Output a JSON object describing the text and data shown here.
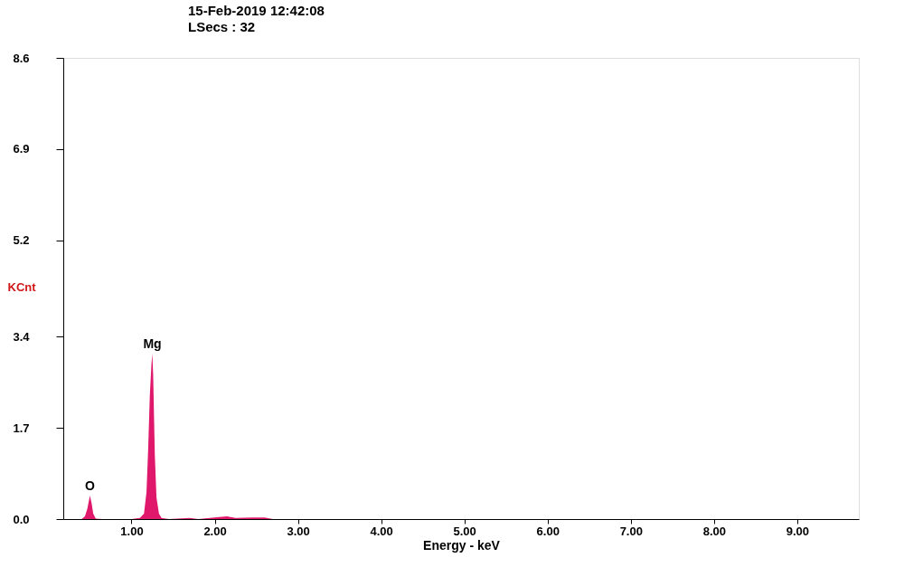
{
  "chart_data": {
    "type": "area",
    "title": "15-Feb-2019 12:42:08",
    "subtitle": "LSecs : 32",
    "xlabel": "Energy - keV",
    "ylabel": "KCnt",
    "x": [
      0.18,
      0.4,
      0.44,
      0.47,
      0.5,
      0.52,
      0.54,
      0.57,
      0.65,
      1.0,
      1.1,
      1.15,
      1.18,
      1.2,
      1.22,
      1.24,
      1.25,
      1.26,
      1.28,
      1.3,
      1.33,
      1.36,
      1.45,
      1.7,
      1.8,
      2.05,
      2.15,
      2.25,
      2.45,
      2.6,
      2.7,
      9.74
    ],
    "series": [
      {
        "color": "#e0186c",
        "values": [
          0,
          0,
          0.05,
          0.2,
          0.44,
          0.3,
          0.1,
          0.01,
          0,
          0,
          0.02,
          0.1,
          0.5,
          1.3,
          2.3,
          2.9,
          3.08,
          2.7,
          1.2,
          0.4,
          0.1,
          0.02,
          0,
          0.02,
          0,
          0.04,
          0.05,
          0.02,
          0.03,
          0.03,
          0,
          0
        ]
      }
    ],
    "xlim": [
      0.18,
      9.74
    ],
    "ylim": [
      0,
      8.6
    ],
    "xticks": [
      {
        "value": 1,
        "label": "1.00"
      },
      {
        "value": 2,
        "label": "2.00"
      },
      {
        "value": 3,
        "label": "3.00"
      },
      {
        "value": 4,
        "label": "4.00"
      },
      {
        "value": 5,
        "label": "5.00"
      },
      {
        "value": 6,
        "label": "6.00"
      },
      {
        "value": 7,
        "label": "7.00"
      },
      {
        "value": 8,
        "label": "8.00"
      },
      {
        "value": 9,
        "label": "9.00"
      }
    ],
    "yticks": [
      {
        "value": 0,
        "label": "0.0"
      },
      1.7,
      3.4,
      5.2,
      6.9,
      8.6
    ],
    "annotations": [
      {
        "text": "O",
        "x": 0.5,
        "y": 0.44
      },
      {
        "text": "Mg",
        "x": 1.25,
        "y": 3.08
      }
    ],
    "grid": false
  }
}
